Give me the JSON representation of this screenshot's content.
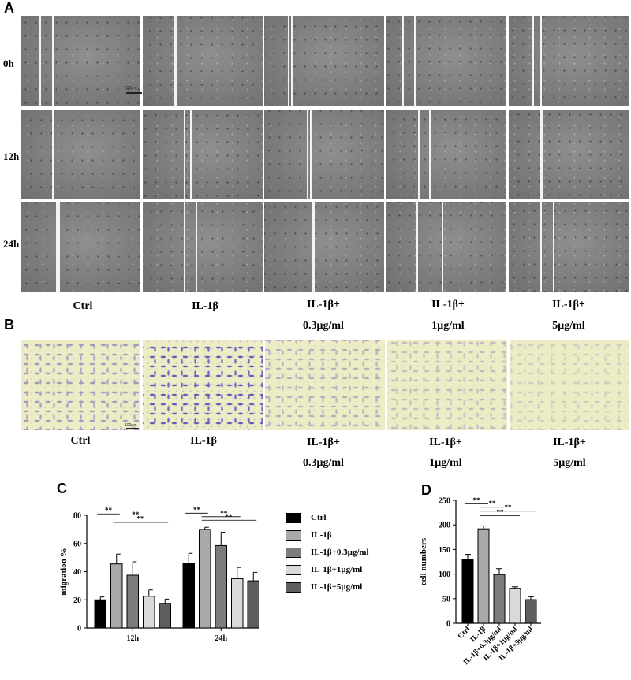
{
  "panels": {
    "a": "A",
    "b": "B",
    "c": "C",
    "d": "D"
  },
  "panel_a": {
    "row_labels": [
      "0h",
      "12h",
      "24h"
    ],
    "col_labels": [
      {
        "l1": "Ctrl",
        "l2": ""
      },
      {
        "l1": "IL-1β",
        "l2": ""
      },
      {
        "l1": "IL-1β+",
        "l2": "0.3μg/ml"
      },
      {
        "l1": "IL-1β+",
        "l2": "1μg/ml"
      },
      {
        "l1": "IL-1β+",
        "l2": "5μg/ml"
      }
    ],
    "scale_bar": "250μm"
  },
  "panel_b": {
    "col_labels": [
      {
        "l1": "Ctrl",
        "l2": ""
      },
      {
        "l1": "IL-1β",
        "l2": ""
      },
      {
        "l1": "IL-1β+",
        "l2": "0.3μg/ml"
      },
      {
        "l1": "IL-1β+",
        "l2": "1μg/ml"
      },
      {
        "l1": "IL-1β+",
        "l2": "5μg/ml"
      }
    ],
    "scale_bar": "100μm",
    "cell_density": [
      0.55,
      1.0,
      0.42,
      0.32,
      0.22
    ]
  },
  "colors": {
    "ctrl": "#000000",
    "il1b": "#a9a9a9",
    "d03": "#7c7c7c",
    "d1": "#d9d9d9",
    "d5": "#5e5e5e"
  },
  "chart_data": [
    {
      "type": "bar",
      "ylabel": "migration %",
      "ylim": [
        0,
        80
      ],
      "yticks": [
        0,
        20,
        40,
        60,
        80
      ],
      "categories": [
        "12h",
        "24h"
      ],
      "series": [
        {
          "name": "Ctrl",
          "values": [
            20,
            46
          ],
          "err": [
            2,
            7
          ]
        },
        {
          "name": "IL-1β",
          "values": [
            45.5,
            70
          ],
          "err": [
            7,
            1.5
          ]
        },
        {
          "name": "IL-1β+0.3μg/ml",
          "values": [
            37.5,
            58.5
          ],
          "err": [
            9.5,
            9.5
          ]
        },
        {
          "name": "IL-1β+1μg/ml",
          "values": [
            22.5,
            35
          ],
          "err": [
            4.5,
            8
          ]
        },
        {
          "name": "IL-1β+5μg/ml",
          "values": [
            17.5,
            33.5
          ],
          "err": [
            3,
            6
          ]
        }
      ],
      "significance": [
        {
          "category": "12h",
          "from": 0,
          "to": 1,
          "label": "**"
        },
        {
          "category": "12h",
          "from": 1,
          "to": 3,
          "label": "**"
        },
        {
          "category": "12h",
          "from": 1,
          "to": 4,
          "label": "**"
        },
        {
          "category": "24h",
          "from": 0,
          "to": 1,
          "label": "**"
        },
        {
          "category": "24h",
          "from": 1,
          "to": 3,
          "label": "**"
        },
        {
          "category": "24h",
          "from": 1,
          "to": 4,
          "label": "**"
        }
      ],
      "legend_position": "right"
    },
    {
      "type": "bar",
      "ylabel": "cell numbers",
      "ylim": [
        0,
        250
      ],
      "yticks": [
        0,
        50,
        100,
        150,
        200,
        250
      ],
      "categories": [
        "Ctrl",
        "IL-1β",
        "IL-1β+0.3μg/ml",
        "IL-1β+1μg/ml",
        "IL-1β+5μg/ml"
      ],
      "values": [
        130,
        192,
        99,
        71,
        48
      ],
      "err": [
        10,
        6,
        12,
        3,
        6
      ],
      "significance": [
        {
          "from": 0,
          "to": 1,
          "label": "**"
        },
        {
          "from": 1,
          "to": 2,
          "label": "**"
        },
        {
          "from": 1,
          "to": 3,
          "label": "**"
        },
        {
          "from": 1,
          "to": 4,
          "label": "**"
        }
      ]
    }
  ]
}
